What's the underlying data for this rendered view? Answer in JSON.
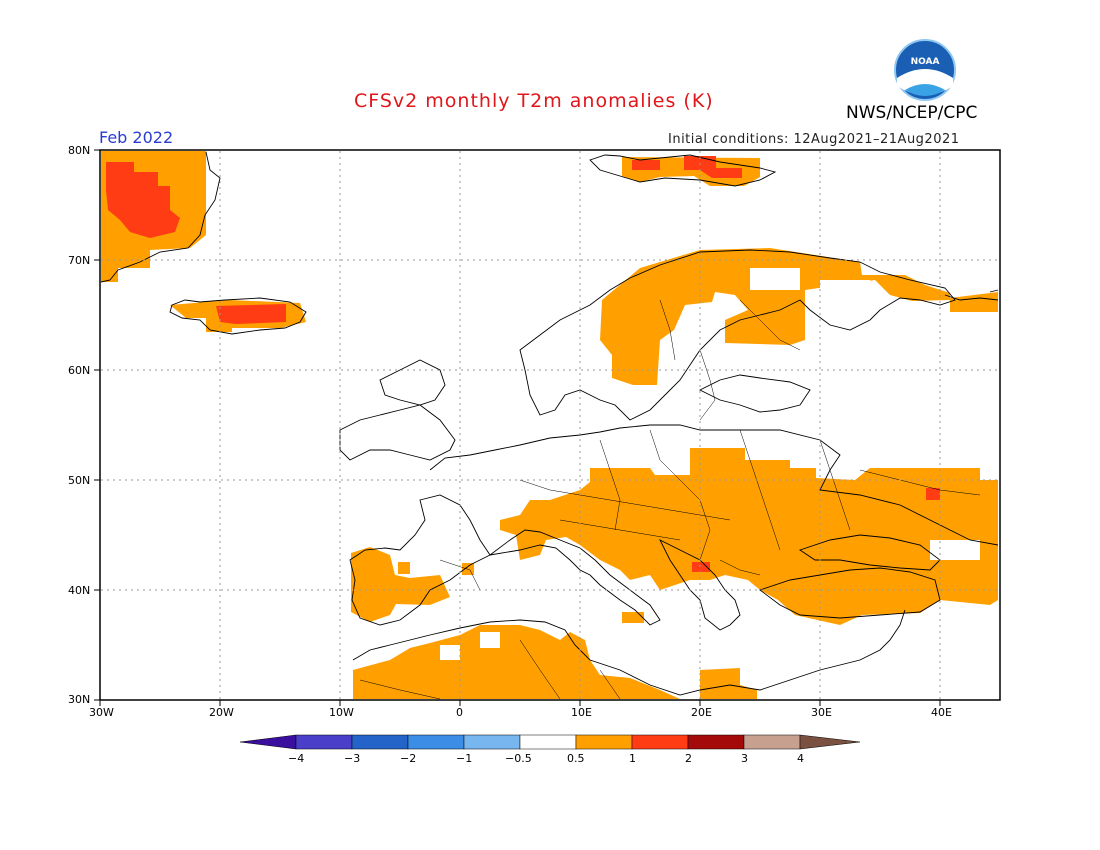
{
  "header": {
    "title": "CFSv2 monthly T2m anomalies (K)",
    "agency": "NWS/NCEP/CPC",
    "logo_text": "NOAA",
    "month": "Feb 2022",
    "initial_conditions": "Initial conditions: 12Aug2021–21Aug2021"
  },
  "map": {
    "lat_labels": [
      "80N",
      "70N",
      "60N",
      "50N",
      "40N",
      "30N"
    ],
    "lon_labels": [
      "30W",
      "20W",
      "10W",
      "0",
      "10E",
      "20E",
      "30E",
      "40E"
    ]
  },
  "colorbar": {
    "labels": [
      "−4",
      "−3",
      "−2",
      "−1",
      "−0.5",
      "0.5",
      "1",
      "2",
      "3",
      "4"
    ],
    "colors": [
      "#3a0fa0",
      "#4a3fc8",
      "#2463c8",
      "#3b8de6",
      "#78b6f0",
      "#ffffff",
      "#ffa000",
      "#ff3c14",
      "#a50a0a",
      "#c8a090",
      "#7a5040"
    ]
  },
  "colors": {
    "anomaly_05_1": "#ffa000",
    "anomaly_1_2": "#ff3c14"
  }
}
